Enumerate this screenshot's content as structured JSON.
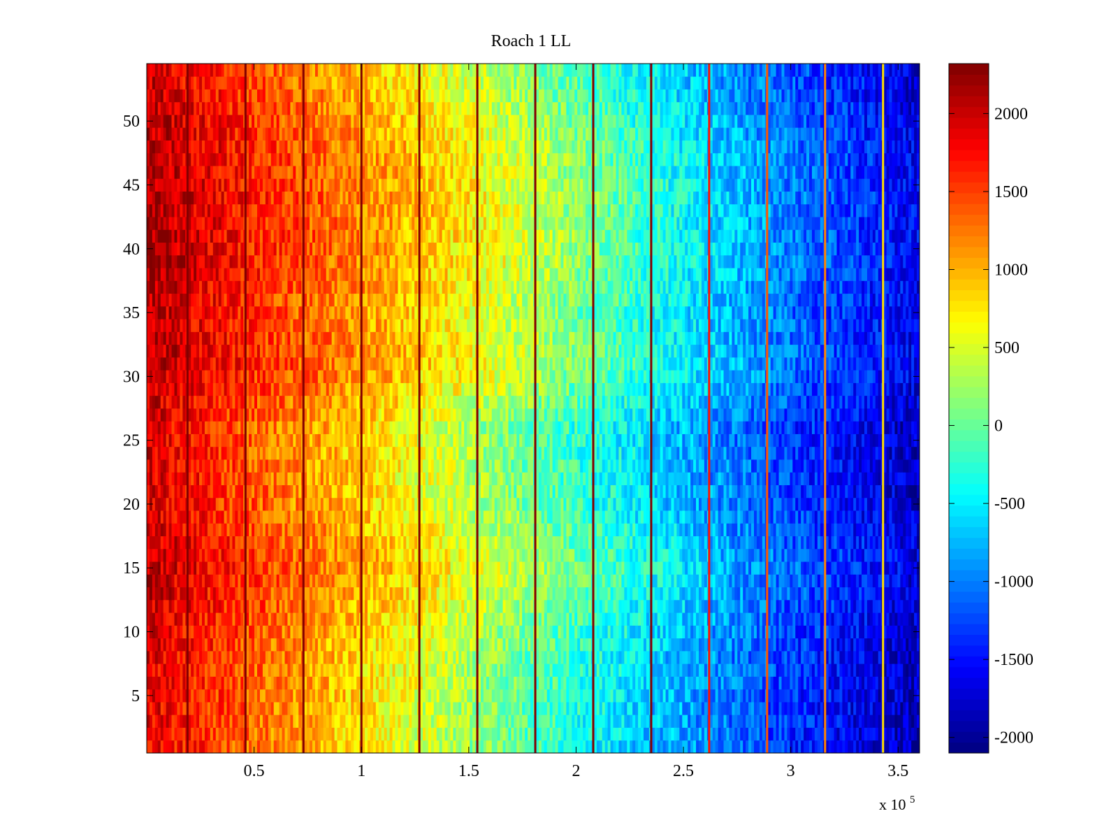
{
  "chart_data": {
    "type": "heatmap",
    "title": "Roach 1 LL",
    "xlabel": "",
    "ylabel": "",
    "x_exponent_label": "x 10",
    "x_exponent_power": "5",
    "xlim": [
      0,
      360000
    ],
    "ylim": [
      0.5,
      54.5
    ],
    "x_ticks": [
      50000,
      100000,
      150000,
      200000,
      250000,
      300000,
      350000
    ],
    "x_tick_labels": [
      "0.5",
      "1",
      "1.5",
      "2",
      "2.5",
      "3",
      "3.5"
    ],
    "y_ticks": [
      5,
      10,
      15,
      20,
      25,
      30,
      35,
      40,
      45,
      50
    ],
    "y_tick_labels": [
      "5",
      "10",
      "15",
      "20",
      "25",
      "30",
      "35",
      "40",
      "45",
      "50"
    ],
    "rows": 54,
    "colorbar": {
      "colormap": "jet",
      "clim": [
        -2100,
        2320
      ],
      "ticks": [
        2000,
        1500,
        1000,
        500,
        0,
        -500,
        -1000,
        -1500,
        -2000
      ],
      "tick_labels": [
        "2000",
        "1500",
        "1000",
        "500",
        "0",
        "-500",
        "-1000",
        "-1500",
        "-2000"
      ]
    },
    "trend": {
      "description_values": "row-averaged value falls roughly linearly along x",
      "x": [
        0,
        50000,
        100000,
        150000,
        200000,
        250000,
        300000,
        360000
      ],
      "value": [
        2000,
        1450,
        950,
        450,
        -100,
        -650,
        -1200,
        -1750
      ]
    },
    "row_offsets": {
      "rows": [
        1,
        8,
        15,
        20,
        26,
        31,
        35,
        39,
        44,
        48,
        52,
        54
      ],
      "offset": [
        -250,
        -150,
        150,
        -100,
        -150,
        250,
        150,
        300,
        300,
        250,
        50,
        0
      ]
    },
    "vertical_stripes": [
      {
        "x": 19000,
        "value": 2300
      },
      {
        "x": 46000,
        "value": 2300
      },
      {
        "x": 73000,
        "value": 2300
      },
      {
        "x": 100000,
        "value": 2300
      },
      {
        "x": 127000,
        "value": 2300
      },
      {
        "x": 154000,
        "value": 2300
      },
      {
        "x": 181000,
        "value": 2300
      },
      {
        "x": 208000,
        "value": 2300
      },
      {
        "x": 235000,
        "value": 2300
      },
      {
        "x": 262000,
        "value": 1700
      },
      {
        "x": 289000,
        "value": 1400
      },
      {
        "x": 316000,
        "value": 1200
      },
      {
        "x": 343000,
        "value": 800
      }
    ]
  }
}
